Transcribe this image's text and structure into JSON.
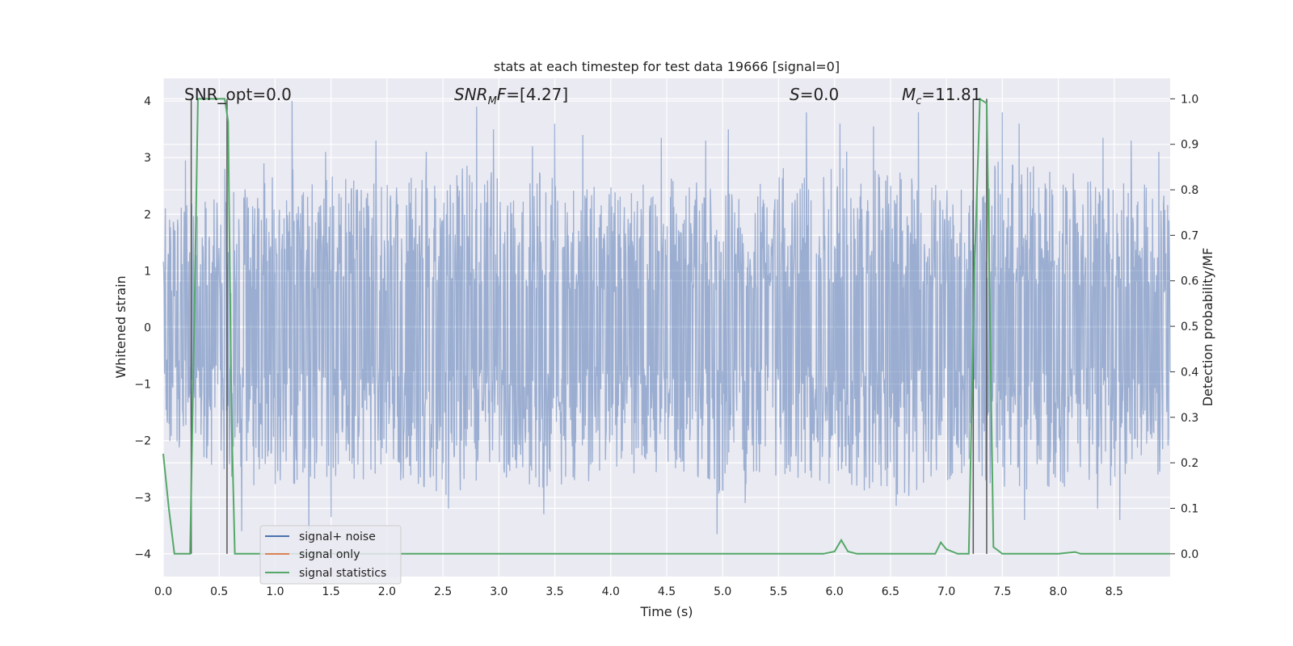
{
  "chart_data": {
    "type": "line",
    "title": "stats at each timestep for test data 19666 [signal=0]",
    "xlabel": "Time (s)",
    "ylabel": "Whitened strain",
    "y2label": "Detection probability/MF",
    "xlim": [
      0.0,
      9.0
    ],
    "ylim": [
      -4.4,
      4.4
    ],
    "y2lim": [
      -0.05,
      1.045
    ],
    "x_ticks": [
      0.0,
      0.5,
      1.0,
      1.5,
      2.0,
      2.5,
      3.0,
      3.5,
      4.0,
      4.5,
      5.0,
      5.5,
      6.0,
      6.5,
      7.0,
      7.5,
      8.0,
      8.5
    ],
    "x_tick_labels": [
      "0.0",
      "0.5",
      "1.0",
      "1.5",
      "2.0",
      "2.5",
      "3.0",
      "3.5",
      "4.0",
      "4.5",
      "5.0",
      "5.5",
      "6.0",
      "6.5",
      "7.0",
      "7.5",
      "8.0",
      "8.5"
    ],
    "y_ticks": [
      -4,
      -3,
      -2,
      -1,
      0,
      1,
      2,
      3,
      4
    ],
    "y_tick_labels": [
      "−4",
      "−3",
      "−2",
      "−1",
      "0",
      "1",
      "2",
      "3",
      "4"
    ],
    "y2_ticks": [
      0.0,
      0.1,
      0.2,
      0.3,
      0.4,
      0.5,
      0.6,
      0.7,
      0.8,
      0.9,
      1.0
    ],
    "y2_tick_labels": [
      "0.0",
      "0.1",
      "0.2",
      "0.3",
      "0.4",
      "0.5",
      "0.6",
      "0.7",
      "0.8",
      "0.9",
      "1.0"
    ],
    "grid": true,
    "legend_position": "lower-left",
    "series": [
      {
        "name": "signal+ noise",
        "axis": "left",
        "color": "#4c72b0",
        "description": "dense whitened strain noise, roughly Gaussian, spanning about -3.7 to 4.0",
        "envelope_upper": [
          [
            0.0,
            2.1
          ],
          [
            0.5,
            2.3
          ],
          [
            1.0,
            2.9
          ],
          [
            1.5,
            2.7
          ],
          [
            2.0,
            2.6
          ],
          [
            2.5,
            2.9
          ],
          [
            3.0,
            2.8
          ],
          [
            3.5,
            2.8
          ],
          [
            4.0,
            2.5
          ],
          [
            4.5,
            2.7
          ],
          [
            5.0,
            2.6
          ],
          [
            5.5,
            2.8
          ],
          [
            6.0,
            3.2
          ],
          [
            6.5,
            2.9
          ],
          [
            7.0,
            2.5
          ],
          [
            7.5,
            3.0
          ],
          [
            8.0,
            2.9
          ],
          [
            8.5,
            2.8
          ],
          [
            9.0,
            2.4
          ]
        ],
        "envelope_lower": [
          [
            0.0,
            -2.0
          ],
          [
            0.5,
            -2.6
          ],
          [
            1.0,
            -2.9
          ],
          [
            1.5,
            -2.8
          ],
          [
            2.0,
            -2.6
          ],
          [
            2.5,
            -3.0
          ],
          [
            3.0,
            -2.7
          ],
          [
            3.5,
            -2.9
          ],
          [
            4.0,
            -2.6
          ],
          [
            4.5,
            -2.7
          ],
          [
            5.0,
            -3.0
          ],
          [
            5.5,
            -2.6
          ],
          [
            6.0,
            -2.8
          ],
          [
            6.5,
            -3.1
          ],
          [
            7.0,
            -2.8
          ],
          [
            7.5,
            -2.9
          ],
          [
            8.0,
            -2.9
          ],
          [
            8.5,
            -2.8
          ],
          [
            9.0,
            -2.6
          ]
        ],
        "peaks": [
          [
            0.2,
            2.95
          ],
          [
            0.55,
            2.8
          ],
          [
            0.9,
            2.9
          ],
          [
            1.15,
            4.0
          ],
          [
            1.45,
            3.1
          ],
          [
            1.9,
            3.3
          ],
          [
            2.35,
            3.1
          ],
          [
            2.8,
            3.9
          ],
          [
            2.95,
            3.5
          ],
          [
            3.3,
            3.2
          ],
          [
            3.5,
            3.6
          ],
          [
            3.75,
            3.4
          ],
          [
            4.45,
            3.35
          ],
          [
            4.85,
            3.3
          ],
          [
            5.05,
            3.5
          ],
          [
            5.75,
            3.8
          ],
          [
            6.05,
            3.6
          ],
          [
            6.35,
            3.55
          ],
          [
            6.75,
            3.8
          ],
          [
            7.5,
            3.8
          ],
          [
            7.65,
            3.6
          ],
          [
            8.4,
            3.35
          ],
          [
            8.65,
            3.3
          ],
          [
            8.9,
            3.1
          ],
          [
            1.3,
            -3.8
          ],
          [
            1.5,
            -3.35
          ],
          [
            2.55,
            -3.2
          ],
          [
            3.4,
            -3.3
          ],
          [
            4.95,
            -3.65
          ],
          [
            5.2,
            -3.1
          ],
          [
            6.55,
            -3.15
          ],
          [
            7.7,
            -3.4
          ],
          [
            8.35,
            -3.2
          ],
          [
            8.55,
            -3.4
          ],
          [
            0.7,
            -3.6
          ]
        ]
      },
      {
        "name": "signal only",
        "axis": "left",
        "color": "#dd8452",
        "values": []
      },
      {
        "name": "signal statistics",
        "axis": "right",
        "color": "#55a868",
        "x": [
          0.0,
          0.05,
          0.1,
          0.18,
          0.24,
          0.28,
          0.31,
          0.55,
          0.58,
          0.61,
          0.64,
          0.75,
          1.0,
          2.0,
          3.0,
          4.0,
          5.0,
          5.5,
          5.9,
          6.0,
          6.06,
          6.12,
          6.2,
          6.5,
          6.9,
          6.95,
          7.0,
          7.1,
          7.2,
          7.25,
          7.3,
          7.36,
          7.42,
          7.5,
          8.0,
          8.15,
          8.2,
          8.3,
          8.5,
          9.0
        ],
        "y": [
          0.22,
          0.1,
          0.0,
          0.0,
          0.0,
          0.55,
          1.0,
          1.0,
          0.95,
          0.3,
          0.0,
          0.0,
          0.0,
          0.0,
          0.0,
          0.0,
          0.0,
          0.0,
          0.0,
          0.005,
          0.03,
          0.005,
          0.0,
          0.0,
          0.0,
          0.025,
          0.01,
          0.0,
          0.0,
          0.62,
          1.0,
          0.99,
          0.015,
          0.0,
          0.0,
          0.004,
          0.0,
          0.0,
          0.0,
          0.0
        ]
      }
    ],
    "vertical_lines": [
      0.25,
      0.57,
      7.24,
      7.36
    ],
    "annotations": {
      "snr_opt": "SNR_opt=0.0",
      "snr_mf_main": "SNR",
      "snr_mf_sub": "M",
      "snr_mf_rest": "F",
      "snr_mf_value": "=[4.27]",
      "s_label": "S",
      "s_value": "=0.0",
      "mc_label": "M",
      "mc_sub": "c",
      "mc_value": "=11.81"
    }
  }
}
